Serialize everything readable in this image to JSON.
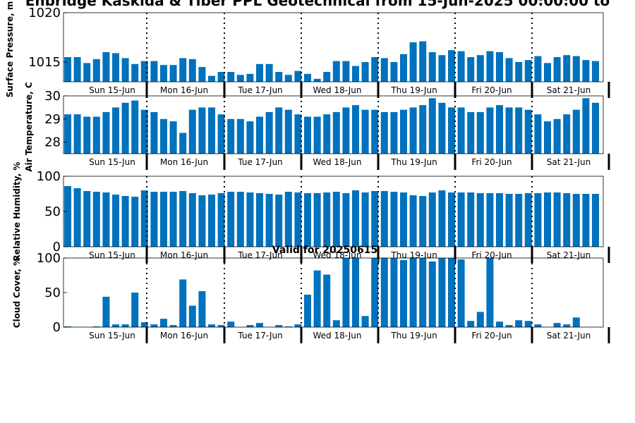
{
  "page_title": "Enbridge  Kaskida & Tiber PPL Geotechnical from 15-Jun-2025 00:00:00 to",
  "bar_color": "#0072bd",
  "chart_data": [
    {
      "type": "bar",
      "ylabel": "Surface Pressure, m",
      "ylim": [
        1013,
        1020
      ],
      "yticks": [
        "1015",
        "1020"
      ],
      "ytick_values": [
        1015,
        1020
      ],
      "day_labels": [
        "Sun 15-Jun",
        "Mon 16-Jun",
        "Tue 17-Jun",
        "Wed 18-Jun",
        "Thu 19-Jun",
        "Fri 20-Jun",
        "Sat 21-Jun"
      ],
      "values": [
        1015.5,
        1015.5,
        1014.9,
        1015.3,
        1016.0,
        1015.9,
        1015.4,
        1014.8,
        1015.1,
        1015.1,
        1014.7,
        1014.7,
        1015.4,
        1015.3,
        1014.5,
        1013.6,
        1014.0,
        1014.0,
        1013.7,
        1013.8,
        1014.8,
        1014.8,
        1014.0,
        1013.7,
        1014.1,
        1013.8,
        1013.3,
        1014.0,
        1015.1,
        1015.1,
        1014.6,
        1015.0,
        1015.5,
        1015.4,
        1015.0,
        1015.8,
        1017.0,
        1017.1,
        1016.0,
        1015.7,
        1016.2,
        1016.1,
        1015.5,
        1015.7,
        1016.1,
        1016.0,
        1015.4,
        1015.0,
        1015.2,
        1015.6,
        1014.9,
        1015.5,
        1015.7,
        1015.6,
        1015.2,
        1015.1
      ]
    },
    {
      "type": "bar",
      "ylabel": "Air Temperature, C",
      "ylim": [
        27.5,
        30
      ],
      "yticks": [
        "28",
        "29",
        "30"
      ],
      "ytick_values": [
        28,
        29,
        30
      ],
      "day_labels": [
        "Sun 15-Jun",
        "Mon 16-Jun",
        "Tue 17-Jun",
        "Wed 18-Jun",
        "Thu 19-Jun",
        "Fri 20-Jun",
        "Sat 21-Jun"
      ],
      "values": [
        29.2,
        29.2,
        29.1,
        29.1,
        29.3,
        29.5,
        29.7,
        29.8,
        29.4,
        29.3,
        29.0,
        28.9,
        28.4,
        29.4,
        29.5,
        29.5,
        29.2,
        29.0,
        29.0,
        28.9,
        29.1,
        29.3,
        29.5,
        29.4,
        29.2,
        29.1,
        29.1,
        29.2,
        29.3,
        29.5,
        29.6,
        29.4,
        29.4,
        29.3,
        29.3,
        29.4,
        29.5,
        29.6,
        29.9,
        29.7,
        29.5,
        29.5,
        29.3,
        29.3,
        29.5,
        29.6,
        29.5,
        29.5,
        29.4,
        29.2,
        28.9,
        29.0,
        29.2,
        29.4,
        29.9,
        29.7
      ]
    },
    {
      "type": "bar",
      "ylabel": "Relative Humidity, %",
      "ylim": [
        0,
        100
      ],
      "yticks": [
        "0",
        "50",
        "100"
      ],
      "ytick_values": [
        0,
        50,
        100
      ],
      "day_labels": [
        "Sun 15-Jun",
        "Mon 16-Jun",
        "Tue 17-Jun",
        "Wed 18-Jun",
        "Thu 19-Jun",
        "Fri 20-Jun",
        "Sat 21-Jun"
      ],
      "values": [
        86,
        83,
        79,
        78,
        77,
        74,
        72,
        71,
        80,
        78,
        78,
        78,
        79,
        76,
        73,
        74,
        76,
        78,
        78,
        77,
        76,
        75,
        74,
        78,
        77,
        76,
        76,
        77,
        78,
        76,
        80,
        77,
        79,
        79,
        78,
        77,
        73,
        72,
        77,
        80,
        77,
        77,
        77,
        76,
        76,
        76,
        75,
        75,
        76,
        76,
        77,
        77,
        76,
        75,
        75,
        75
      ]
    },
    {
      "type": "bar",
      "title": "Valid for 20250615",
      "ylabel": "Cloud Cover, %",
      "ylim": [
        0,
        100
      ],
      "yticks": [
        "0",
        "50",
        "100"
      ],
      "ytick_values": [
        0,
        50,
        100
      ],
      "day_labels": [
        "Sun 15-Jun",
        "Mon 16-Jun",
        "Tue 17-Jun",
        "Wed 18-Jun",
        "Thu 19-Jun",
        "Fri 20-Jun",
        "Sat 21-Jun"
      ],
      "values": [
        1,
        0,
        0,
        1,
        44,
        4,
        4,
        50,
        7,
        4,
        12,
        3,
        69,
        31,
        52,
        4,
        3,
        8,
        0,
        3,
        6,
        0,
        3,
        1,
        4,
        47,
        82,
        76,
        10,
        100,
        100,
        16,
        100,
        100,
        100,
        97,
        100,
        100,
        95,
        100,
        100,
        98,
        9,
        22,
        100,
        8,
        3,
        10,
        9,
        4,
        0,
        6,
        4,
        14,
        0,
        0
      ]
    }
  ]
}
